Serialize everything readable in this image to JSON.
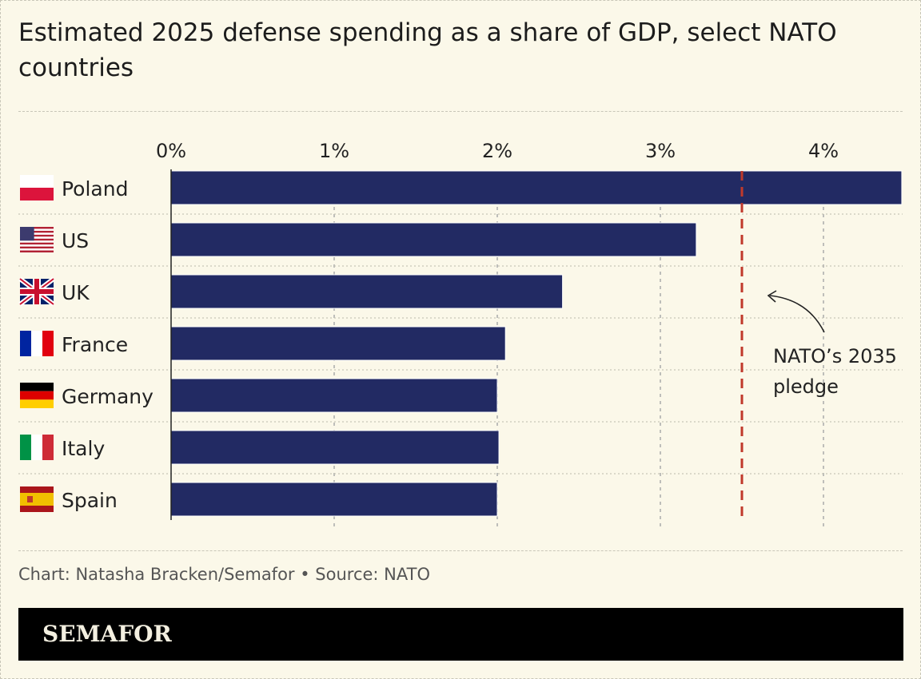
{
  "title": "Estimated 2025 defense spending as a share of GDP, select NATO countries",
  "credit": "Chart: Natasha Bracken/Semafor • Source: NATO",
  "brand": "SEMAFOR",
  "colors": {
    "bar": "#222a63",
    "pledge": "#c0392b",
    "background": "#fbf8e9"
  },
  "chart_data": {
    "type": "bar",
    "orientation": "horizontal",
    "categories": [
      "Poland",
      "US",
      "UK",
      "France",
      "Germany",
      "Italy",
      "Spain"
    ],
    "flags": [
      "flag-poland-icon",
      "flag-us-icon",
      "flag-uk-icon",
      "flag-france-icon",
      "flag-germany-icon",
      "flag-italy-icon",
      "flag-spain-icon"
    ],
    "values": [
      4.48,
      3.22,
      2.4,
      2.05,
      2.0,
      2.01,
      2.0
    ],
    "unit": "%",
    "xlim": [
      0,
      4.5
    ],
    "ticks": [
      "0%",
      "1%",
      "2%",
      "3%",
      "4%"
    ],
    "grid": true,
    "reference_line": {
      "value": 3.5,
      "label_lines": [
        "NATO’s 2035",
        "pledge"
      ]
    }
  }
}
